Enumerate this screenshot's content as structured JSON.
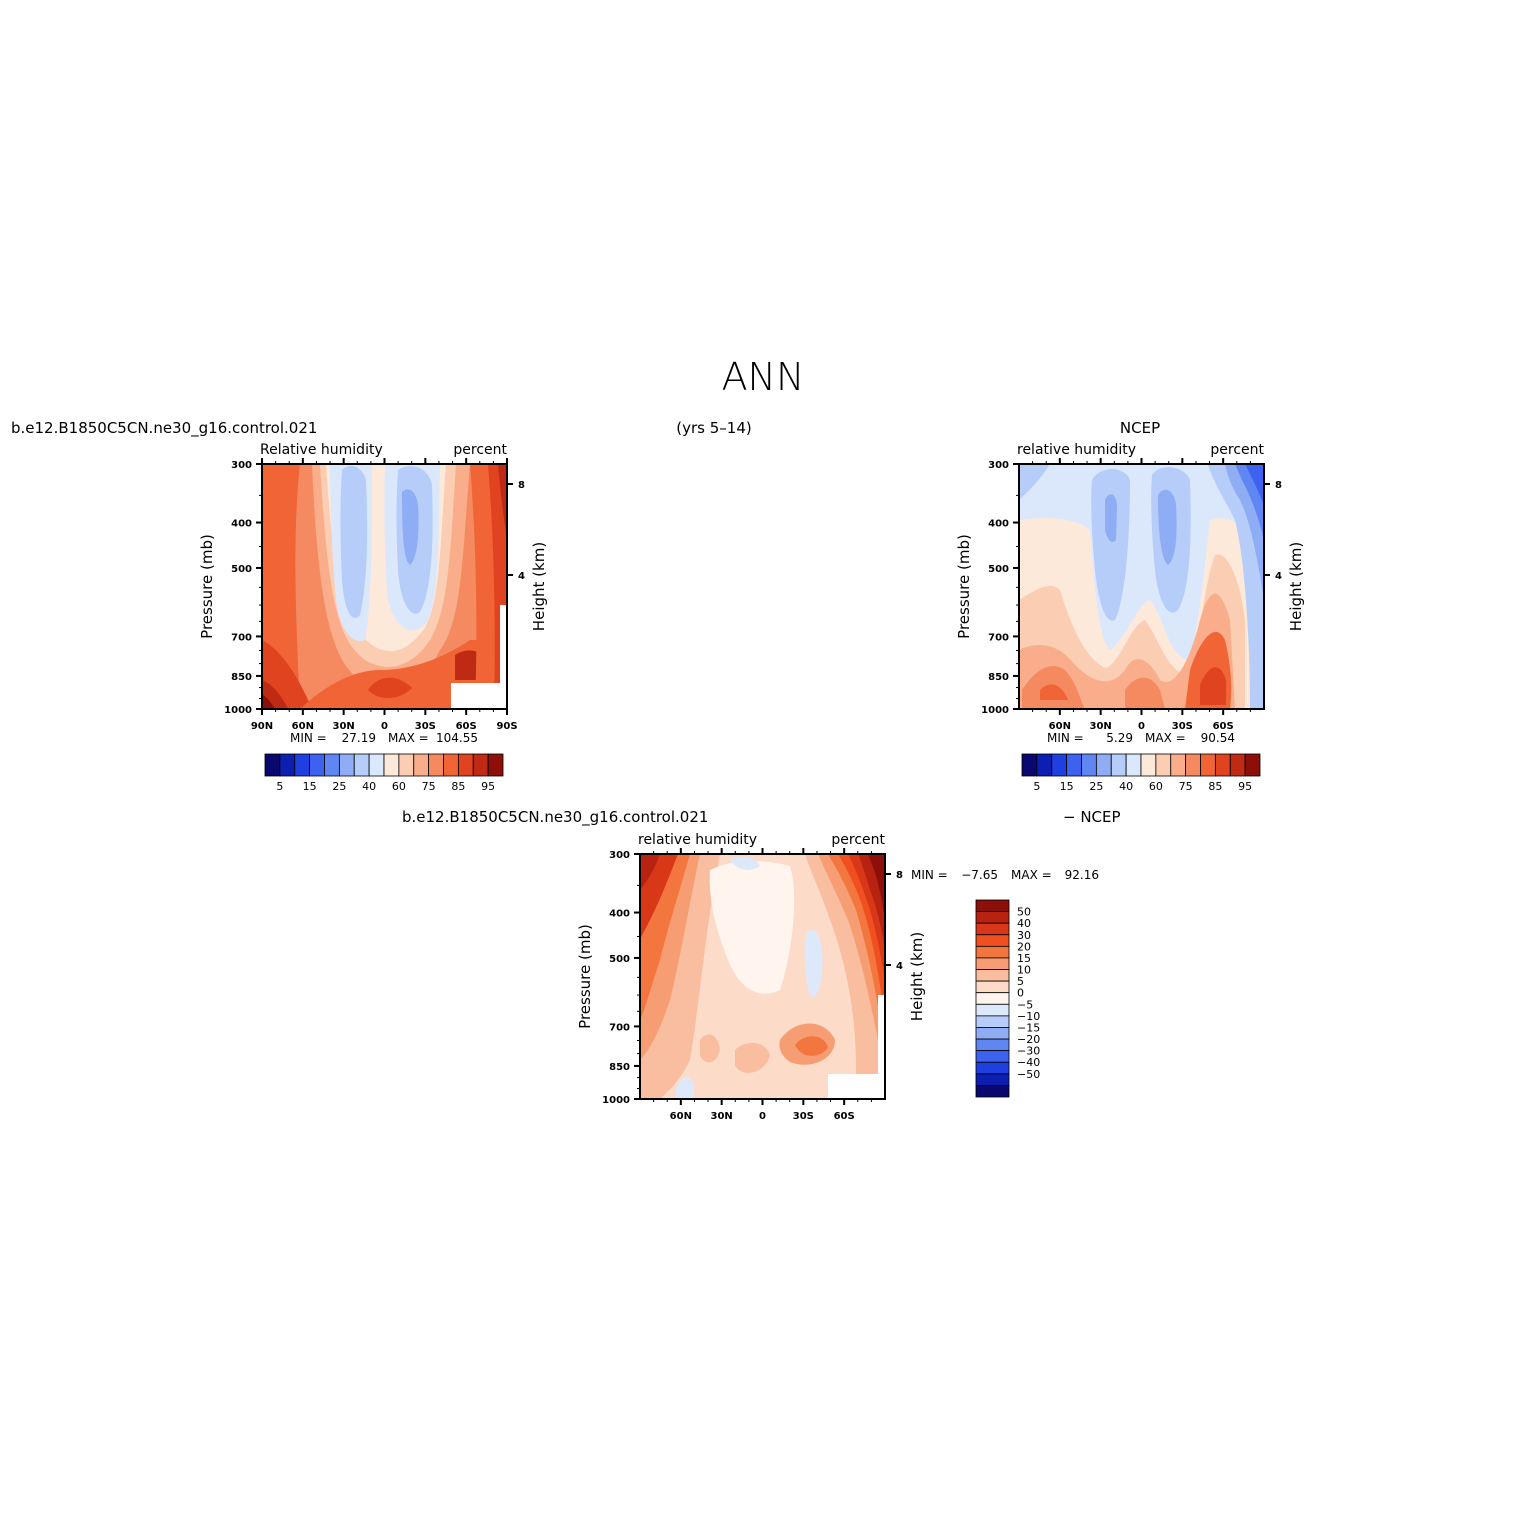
{
  "figure": {
    "title": "ANN",
    "subtitle_years": "(yrs 5–14)"
  },
  "chart_data": [
    {
      "type": "heatmap",
      "case_name": "b.e12.B1850C5CN.ne30_g16.control.021",
      "left_label": "Relative humidity",
      "right_label": "percent",
      "ylabel": "Pressure (mb)",
      "ylabel_right": "Height (km)",
      "y_ticks": [
        "300",
        "400",
        "500",
        "700",
        "850",
        "1000"
      ],
      "y_right_ticks": [
        "8",
        "4"
      ],
      "x_ticks": [
        "90N",
        "60N",
        "30N",
        "0",
        "30S",
        "60S",
        "90S"
      ],
      "stats": {
        "min_label": "MIN =",
        "min": "27.19",
        "max_label": "MAX =",
        "max": "104.55"
      },
      "colorbar_labels": [
        "5",
        "15",
        "25",
        "40",
        "60",
        "75",
        "85",
        "95"
      ]
    },
    {
      "type": "heatmap",
      "case_name": "NCEP",
      "left_label": "relative humidity",
      "right_label": "percent",
      "ylabel": "Pressure (mb)",
      "ylabel_right": "Height (km)",
      "y_ticks": [
        "300",
        "400",
        "500",
        "700",
        "850",
        "1000"
      ],
      "y_right_ticks": [
        "8",
        "4"
      ],
      "x_ticks": [
        "60N",
        "30N",
        "0",
        "30S",
        "60S"
      ],
      "stats": {
        "min_label": "MIN =",
        "min": "5.29",
        "max_label": "MAX =",
        "max": "90.54"
      },
      "colorbar_labels": [
        "5",
        "15",
        "25",
        "40",
        "60",
        "75",
        "85",
        "95"
      ]
    },
    {
      "type": "heatmap",
      "case_name": "b.e12.B1850C5CN.ne30_g16.control.021",
      "case_suffix": "− NCEP",
      "left_label": "relative humidity",
      "right_label": "percent",
      "ylabel": "Pressure (mb)",
      "ylabel_right": "Height (km)",
      "y_ticks": [
        "300",
        "400",
        "500",
        "700",
        "850",
        "1000"
      ],
      "y_right_ticks": [
        "8",
        "4"
      ],
      "x_ticks": [
        "60N",
        "30N",
        "0",
        "30S",
        "60S"
      ],
      "stats": {
        "min_label": "MIN =",
        "min": "−7.65",
        "max_label": "MAX =",
        "max": "92.16"
      },
      "colorbar_labels": [
        "50",
        "40",
        "30",
        "20",
        "15",
        "10",
        "5",
        "0",
        "−5",
        "−10",
        "−15",
        "−20",
        "−30",
        "−40",
        "−50"
      ]
    }
  ],
  "palette": {
    "diverging": [
      "#08086e",
      "#0b1fb0",
      "#1f3fe0",
      "#3c62ef",
      "#5f86f2",
      "#8fadf5",
      "#b6cdf9",
      "#dbe8fc",
      "#fde9d9",
      "#fbcdb2",
      "#f9ad8a",
      "#f58a60",
      "#f06436",
      "#e0431f",
      "#bf2a14",
      "#8d0f0a"
    ],
    "difference": [
      "#8d0f0a",
      "#b82211",
      "#d93818",
      "#f0501f",
      "#f4763f",
      "#f79d73",
      "#f9bda0",
      "#fcdcc8",
      "#fff5ee",
      "#dde9fb",
      "#b6cdf9",
      "#8fadf5",
      "#5f86f2",
      "#3c62ef",
      "#1f3fe0",
      "#0b1fb0",
      "#08086e"
    ]
  }
}
